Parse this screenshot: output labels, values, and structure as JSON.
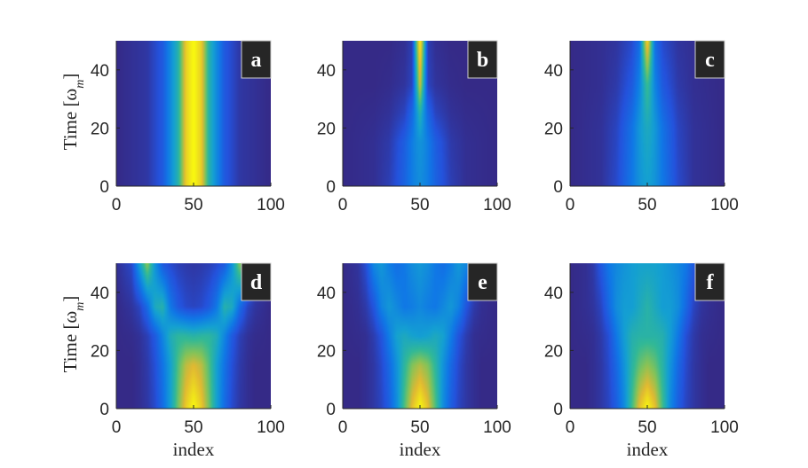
{
  "chart_data": [
    {
      "type": "heatmap",
      "panel": "a",
      "panel_label": "a",
      "xlabel": "",
      "ylabel": "Time [ωm]",
      "ylabel_sub": "m",
      "xlim": [
        0,
        100
      ],
      "ylim": [
        0,
        50
      ],
      "xticks": [
        "0",
        "50",
        "100"
      ],
      "yticks": [
        "0",
        "20",
        "40"
      ],
      "profile_x": [
        0,
        20,
        30,
        40,
        45,
        50,
        55,
        60,
        70,
        80,
        100
      ],
      "profile_t": [
        0,
        25,
        50
      ],
      "rows": [
        [
          0.0,
          0.05,
          0.18,
          0.55,
          0.9,
          1.0,
          0.9,
          0.55,
          0.18,
          0.05,
          0.0
        ],
        [
          0.0,
          0.05,
          0.18,
          0.55,
          0.9,
          1.0,
          0.9,
          0.55,
          0.18,
          0.05,
          0.0
        ],
        [
          0.0,
          0.05,
          0.18,
          0.55,
          0.9,
          1.0,
          0.9,
          0.55,
          0.18,
          0.05,
          0.0
        ]
      ]
    },
    {
      "type": "heatmap",
      "panel": "b",
      "panel_label": "b",
      "xlabel": "",
      "ylabel": "",
      "xlim": [
        0,
        100
      ],
      "ylim": [
        0,
        50
      ],
      "xticks": [
        "0",
        "50",
        "100"
      ],
      "yticks": [
        "0",
        "20",
        "40"
      ],
      "profile_x": [
        0,
        20,
        30,
        40,
        45,
        48,
        50,
        52,
        55,
        60,
        70,
        80,
        100
      ],
      "profile_t": [
        0,
        15,
        25,
        35,
        50
      ],
      "rows": [
        [
          0.0,
          0.02,
          0.08,
          0.22,
          0.32,
          0.36,
          0.38,
          0.36,
          0.32,
          0.22,
          0.08,
          0.02,
          0.0
        ],
        [
          0.0,
          0.02,
          0.06,
          0.2,
          0.32,
          0.38,
          0.4,
          0.38,
          0.32,
          0.2,
          0.06,
          0.02,
          0.0
        ],
        [
          0.0,
          0.01,
          0.03,
          0.1,
          0.24,
          0.42,
          0.55,
          0.42,
          0.24,
          0.1,
          0.03,
          0.01,
          0.0
        ],
        [
          0.0,
          0.0,
          0.01,
          0.04,
          0.1,
          0.55,
          0.85,
          0.55,
          0.1,
          0.04,
          0.01,
          0.0,
          0.0
        ],
        [
          0.0,
          0.0,
          0.0,
          0.02,
          0.08,
          0.7,
          1.0,
          0.7,
          0.08,
          0.02,
          0.0,
          0.0,
          0.0
        ]
      ]
    },
    {
      "type": "heatmap",
      "panel": "c",
      "panel_label": "c",
      "xlabel": "",
      "ylabel": "",
      "xlim": [
        0,
        100
      ],
      "ylim": [
        0,
        50
      ],
      "xticks": [
        "0",
        "50",
        "100"
      ],
      "yticks": [
        "0",
        "20",
        "40"
      ],
      "profile_x": [
        0,
        20,
        30,
        40,
        45,
        48,
        50,
        52,
        55,
        60,
        70,
        80,
        100
      ],
      "profile_t": [
        0,
        20,
        35,
        50
      ],
      "rows": [
        [
          0.0,
          0.03,
          0.12,
          0.3,
          0.4,
          0.44,
          0.45,
          0.44,
          0.4,
          0.3,
          0.12,
          0.03,
          0.0
        ],
        [
          0.0,
          0.03,
          0.1,
          0.28,
          0.42,
          0.48,
          0.5,
          0.48,
          0.42,
          0.28,
          0.1,
          0.03,
          0.0
        ],
        [
          0.0,
          0.02,
          0.06,
          0.18,
          0.34,
          0.52,
          0.62,
          0.52,
          0.34,
          0.18,
          0.06,
          0.02,
          0.0
        ],
        [
          0.0,
          0.02,
          0.04,
          0.12,
          0.26,
          0.7,
          0.95,
          0.7,
          0.26,
          0.12,
          0.04,
          0.02,
          0.0
        ]
      ]
    },
    {
      "type": "heatmap",
      "panel": "d",
      "panel_label": "d",
      "xlabel": "index",
      "ylabel": "Time [ωm]",
      "ylabel_sub": "m",
      "xlim": [
        0,
        100
      ],
      "ylim": [
        0,
        50
      ],
      "xticks": [
        "0",
        "50",
        "100"
      ],
      "yticks": [
        "0",
        "20",
        "40"
      ],
      "profile_x": [
        0,
        10,
        15,
        20,
        25,
        30,
        35,
        40,
        45,
        50,
        55,
        60,
        65,
        70,
        75,
        80,
        85,
        90,
        100
      ],
      "profile_t": [
        0,
        15,
        25,
        35,
        50
      ],
      "rows": [
        [
          0.0,
          0.0,
          0.02,
          0.05,
          0.12,
          0.25,
          0.45,
          0.7,
          0.9,
          1.0,
          0.9,
          0.7,
          0.45,
          0.25,
          0.12,
          0.05,
          0.02,
          0.0,
          0.0
        ],
        [
          0.0,
          0.0,
          0.02,
          0.06,
          0.14,
          0.28,
          0.45,
          0.65,
          0.8,
          0.85,
          0.8,
          0.65,
          0.45,
          0.28,
          0.14,
          0.06,
          0.02,
          0.0,
          0.0
        ],
        [
          0.0,
          0.01,
          0.03,
          0.08,
          0.18,
          0.35,
          0.52,
          0.58,
          0.58,
          0.56,
          0.58,
          0.58,
          0.52,
          0.35,
          0.18,
          0.08,
          0.03,
          0.01,
          0.0
        ],
        [
          0.0,
          0.04,
          0.1,
          0.25,
          0.5,
          0.55,
          0.3,
          0.18,
          0.12,
          0.1,
          0.12,
          0.18,
          0.3,
          0.55,
          0.5,
          0.25,
          0.1,
          0.04,
          0.0
        ],
        [
          0.02,
          0.12,
          0.45,
          0.75,
          0.4,
          0.18,
          0.12,
          0.08,
          0.06,
          0.05,
          0.06,
          0.08,
          0.12,
          0.18,
          0.4,
          0.75,
          0.45,
          0.12,
          0.02
        ]
      ]
    },
    {
      "type": "heatmap",
      "panel": "e",
      "panel_label": "e",
      "xlabel": "index",
      "ylabel": "",
      "xlim": [
        0,
        100
      ],
      "ylim": [
        0,
        50
      ],
      "xticks": [
        "0",
        "50",
        "100"
      ],
      "yticks": [
        "0",
        "20",
        "40"
      ],
      "profile_x": [
        0,
        10,
        15,
        20,
        25,
        30,
        35,
        40,
        45,
        50,
        55,
        60,
        65,
        70,
        75,
        80,
        85,
        90,
        100
      ],
      "profile_t": [
        0,
        15,
        25,
        35,
        50
      ],
      "rows": [
        [
          0.0,
          0.0,
          0.02,
          0.05,
          0.1,
          0.2,
          0.38,
          0.65,
          0.88,
          1.0,
          0.88,
          0.65,
          0.38,
          0.2,
          0.1,
          0.05,
          0.02,
          0.0,
          0.0
        ],
        [
          0.0,
          0.0,
          0.02,
          0.05,
          0.12,
          0.24,
          0.4,
          0.58,
          0.72,
          0.78,
          0.72,
          0.58,
          0.4,
          0.24,
          0.12,
          0.05,
          0.02,
          0.0,
          0.0
        ],
        [
          0.0,
          0.01,
          0.02,
          0.07,
          0.16,
          0.32,
          0.46,
          0.5,
          0.46,
          0.44,
          0.46,
          0.5,
          0.46,
          0.32,
          0.16,
          0.07,
          0.02,
          0.01,
          0.0
        ],
        [
          0.0,
          0.02,
          0.06,
          0.16,
          0.34,
          0.42,
          0.36,
          0.3,
          0.32,
          0.36,
          0.32,
          0.3,
          0.36,
          0.42,
          0.34,
          0.16,
          0.06,
          0.02,
          0.0
        ],
        [
          0.0,
          0.04,
          0.14,
          0.36,
          0.42,
          0.32,
          0.26,
          0.3,
          0.38,
          0.42,
          0.38,
          0.3,
          0.26,
          0.32,
          0.42,
          0.36,
          0.14,
          0.04,
          0.0
        ]
      ]
    },
    {
      "type": "heatmap",
      "panel": "f",
      "panel_label": "f",
      "xlabel": "index",
      "ylabel": "",
      "xlim": [
        0,
        100
      ],
      "ylim": [
        0,
        50
      ],
      "xticks": [
        "0",
        "50",
        "100"
      ],
      "yticks": [
        "0",
        "20",
        "40"
      ],
      "profile_x": [
        0,
        10,
        15,
        20,
        25,
        30,
        35,
        40,
        45,
        50,
        55,
        60,
        65,
        70,
        75,
        80,
        85,
        90,
        100
      ],
      "profile_t": [
        0,
        15,
        25,
        35,
        50
      ],
      "rows": [
        [
          0.0,
          0.0,
          0.02,
          0.05,
          0.1,
          0.2,
          0.36,
          0.62,
          0.88,
          1.0,
          0.88,
          0.62,
          0.36,
          0.2,
          0.1,
          0.05,
          0.02,
          0.0,
          0.0
        ],
        [
          0.0,
          0.0,
          0.02,
          0.05,
          0.12,
          0.24,
          0.4,
          0.56,
          0.68,
          0.74,
          0.68,
          0.56,
          0.4,
          0.24,
          0.12,
          0.05,
          0.02,
          0.0,
          0.0
        ],
        [
          0.0,
          0.01,
          0.02,
          0.06,
          0.14,
          0.3,
          0.44,
          0.54,
          0.56,
          0.56,
          0.56,
          0.54,
          0.44,
          0.3,
          0.14,
          0.06,
          0.02,
          0.01,
          0.0
        ],
        [
          0.0,
          0.02,
          0.04,
          0.1,
          0.24,
          0.38,
          0.44,
          0.44,
          0.5,
          0.56,
          0.5,
          0.44,
          0.44,
          0.38,
          0.24,
          0.1,
          0.04,
          0.02,
          0.0
        ],
        [
          0.0,
          0.02,
          0.06,
          0.18,
          0.3,
          0.36,
          0.4,
          0.44,
          0.46,
          0.46,
          0.46,
          0.44,
          0.4,
          0.36,
          0.3,
          0.18,
          0.06,
          0.02,
          0.0
        ]
      ]
    }
  ]
}
